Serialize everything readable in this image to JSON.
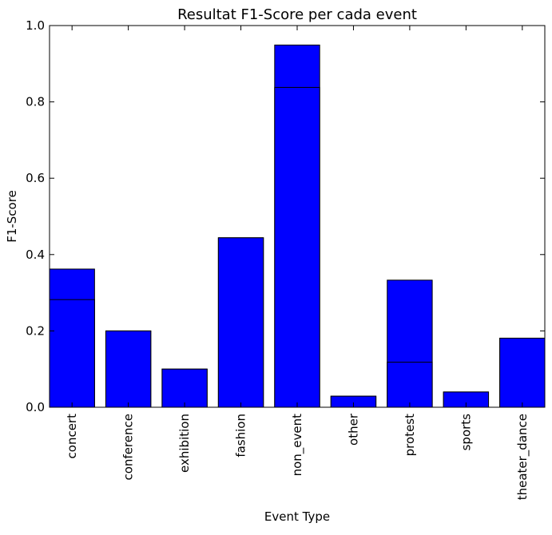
{
  "chart_data": {
    "type": "bar",
    "title": "Resultat F1-Score per cada event",
    "xlabel": "Event Type",
    "ylabel": "F1-Score",
    "ylim": [
      0,
      1.0
    ],
    "yticks": [
      "0.0",
      "0.2",
      "0.4",
      "0.6",
      "0.8",
      "1.0"
    ],
    "grid": false,
    "categories": [
      "concert",
      "conference",
      "exhibition",
      "fashion",
      "non_event",
      "other",
      "protest",
      "sports",
      "theater_dance"
    ],
    "series": [
      {
        "values": [
          0.362,
          0.2,
          0.1,
          0.444,
          0.949,
          0.029,
          0.333,
          0.04,
          0.181
        ]
      },
      {
        "values": [
          0.282,
          0.2,
          0.1,
          0.444,
          0.838,
          0.029,
          0.118,
          0.04,
          0.181
        ]
      }
    ],
    "bar_color": "#0000ff",
    "edge_color": "#000000"
  }
}
